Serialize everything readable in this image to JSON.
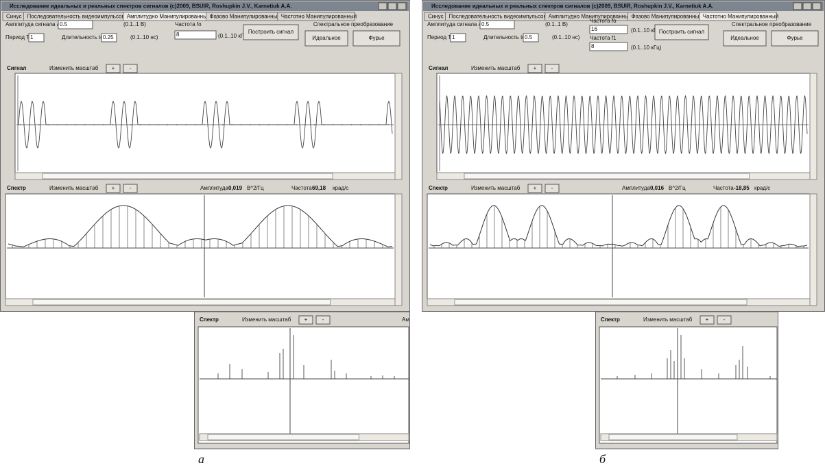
{
  "panels": [
    {
      "title": "Исследование идеальных и реальных спектров сигналов (c)2009, BSUIR, Roshupkin J.V., Karnetiuk A.A.",
      "tabs": [
        "Синус",
        "Последовательность видеоимпульсов",
        "Амплитудно Манипулированный",
        "Фазово Манипулированный",
        "Частотно Манипулированный"
      ],
      "fields": [
        {
          "label": "Амплитуда сигнала A",
          "value": "0.5",
          "range": "(0.1..1 В)"
        },
        {
          "label": "Период To",
          "value": "1"
        },
        {
          "label": "Длительность to",
          "value": "0.25",
          "range": "(0.1..10 нс)"
        },
        {
          "label": "Частота fo",
          "value": "8",
          "range": "(0.1..10 кГц)"
        }
      ],
      "build_button": "Построить сигнал",
      "transform_label": "Спектральное преобразование",
      "transform_buttons": [
        "Идеальное",
        "Фурье"
      ],
      "signal": {
        "label": "Сигнал",
        "scale_label": "Изменить масштаб",
        "zoom_in": "+",
        "zoom_out": "-"
      },
      "spectrum": {
        "label": "Спектр",
        "scale_label": "Изменить масштаб",
        "zoom_in": "+",
        "zoom_out": "-",
        "amplitude_label": "Амплитуда",
        "amplitude": "0,019",
        "amplitude_unit": "В^2/Гц",
        "frequency_label": "Частота",
        "frequency": "69,18",
        "frequency_unit": "крад/с"
      },
      "inset": {
        "label": "Спектр",
        "scale_label": "Изменить масштаб",
        "zoom_in": "+",
        "zoom_out": "-",
        "trailing": "Ам"
      },
      "caption": "а"
    },
    {
      "title": "Исследование идеальных и реальных спектров сигналов (c)2009, BSUIR, Roshupkin J.V., Karnetiuk A.A.",
      "tabs": [
        "Синус",
        "Последовательность видеоимпульсов",
        "Амплитудно Манипулированный",
        "Фазово Манипулированный",
        "Частотно Манипулированный"
      ],
      "fields": [
        {
          "label": "Амплитуда сигнала A",
          "value": "0.5",
          "range": "(0.1..1 В)"
        },
        {
          "label": "Период To",
          "value": "1"
        },
        {
          "label": "Длительность to",
          "value": "0.5",
          "range": "(0.1..10 нс)"
        },
        {
          "label": "Частота fo",
          "value": "16",
          "range": "(0.1..10 кГц)"
        },
        {
          "label": "Частота f1",
          "value": "8",
          "range": "(0.1..10 кГц)"
        }
      ],
      "build_button": "Построить сигнал",
      "transform_label": "Спектральное преобразование",
      "transform_buttons": [
        "Идеальное",
        "Фурье"
      ],
      "signal": {
        "label": "Сигнал",
        "scale_label": "Изменить масштаб",
        "zoom_in": "+",
        "zoom_out": "-"
      },
      "spectrum": {
        "label": "Спектр",
        "scale_label": "Изменить масштаб",
        "zoom_in": "+",
        "zoom_out": "-",
        "amplitude_label": "Амплитуда",
        "amplitude": "0,016",
        "amplitude_unit": "В^2/Гц",
        "frequency_label": "Частота",
        "frequency": "-18,85",
        "frequency_unit": "крад/с"
      },
      "inset": {
        "label": "Спектр",
        "scale_label": "Изменить масштаб",
        "zoom_in": "+",
        "zoom_out": "-"
      },
      "caption": "б"
    }
  ]
}
